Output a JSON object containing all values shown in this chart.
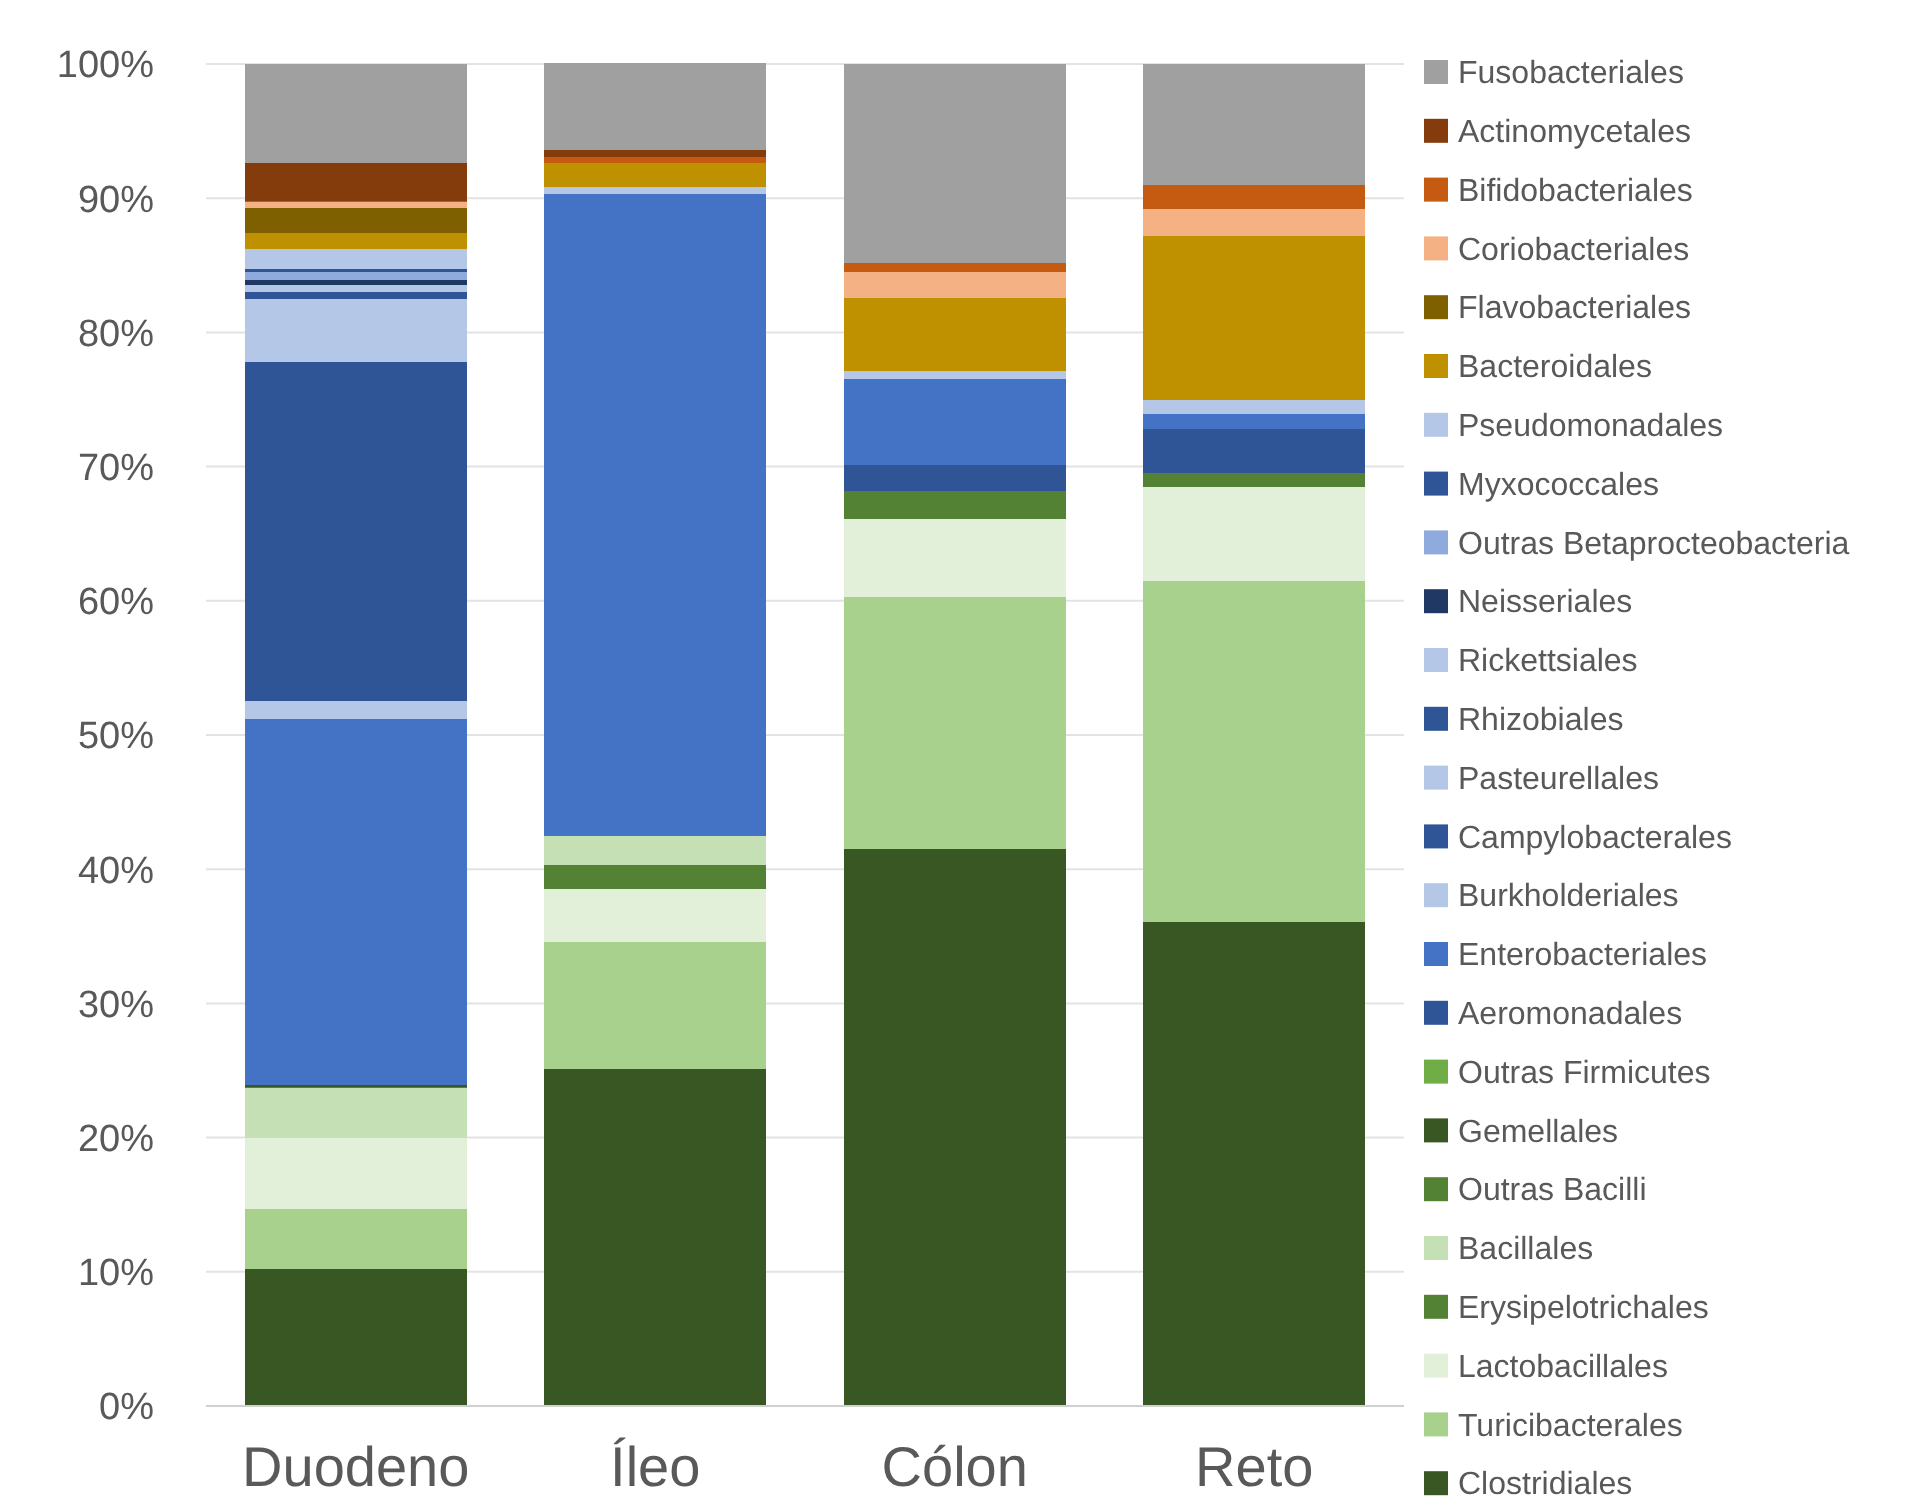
{
  "chart_data": {
    "type": "bar",
    "stacked": true,
    "categories": [
      "Duodeno",
      "Íleo",
      "Cólon",
      "Reto"
    ],
    "ylim": [
      0,
      100
    ],
    "yticks": [
      {
        "value": 0,
        "label": "0%"
      },
      {
        "value": 10,
        "label": "10%"
      },
      {
        "value": 20,
        "label": "20%"
      },
      {
        "value": 30,
        "label": "30%"
      },
      {
        "value": 40,
        "label": "40%"
      },
      {
        "value": 50,
        "label": "50%"
      },
      {
        "value": 60,
        "label": "60%"
      },
      {
        "value": 70,
        "label": "70%"
      },
      {
        "value": 80,
        "label": "80%"
      },
      {
        "value": 90,
        "label": "90%"
      },
      {
        "value": 100,
        "label": "100%"
      }
    ],
    "grid": "y",
    "legend": "right",
    "series": [
      {
        "name": "Clostridiales",
        "color": "#385723",
        "values": [
          10.2,
          25.1,
          41.5,
          36.1
        ]
      },
      {
        "name": "Turicibacterales",
        "color": "#a9d18e",
        "values": [
          4.5,
          9.5,
          18.8,
          25.4
        ]
      },
      {
        "name": "Lactobacillales",
        "color": "#e2f0d9",
        "values": [
          5.3,
          3.9,
          5.8,
          7.0
        ]
      },
      {
        "name": "Erysipelotrichales",
        "color": "#548235",
        "values": [
          null,
          1.8,
          2.1,
          1.0
        ]
      },
      {
        "name": "Bacillales",
        "color": "#c5e0b4",
        "values": [
          3.7,
          2.2,
          null,
          null
        ]
      },
      {
        "name": "Outras Bacilli",
        "color": "#548235",
        "values": [
          0.1,
          null,
          null,
          null
        ]
      },
      {
        "name": "Gemellales",
        "color": "#385723",
        "values": [
          0.1,
          null,
          null,
          null
        ]
      },
      {
        "name": "Outras Firmicutes",
        "color": "#70ad47",
        "values": [
          null,
          null,
          null,
          null
        ]
      },
      {
        "name": "Aeromonadales",
        "color": "#2f5597",
        "values": [
          null,
          null,
          1.9,
          3.3
        ]
      },
      {
        "name": "Enterobacteriales",
        "color": "#4472c4",
        "values": [
          27.3,
          47.8,
          6.4,
          1.1
        ]
      },
      {
        "name": "Burkholderiales",
        "color": "#b4c7e7",
        "values": [
          1.3,
          null,
          null,
          null
        ]
      },
      {
        "name": "Campylobacterales",
        "color": "#2f5597",
        "values": [
          25.3,
          null,
          null,
          null
        ]
      },
      {
        "name": "Pasteurellales",
        "color": "#b4c7e7",
        "values": [
          4.7,
          null,
          null,
          null
        ]
      },
      {
        "name": "Rhizobiales",
        "color": "#2f5597",
        "values": [
          0.5,
          null,
          null,
          null
        ]
      },
      {
        "name": "Rickettsiales",
        "color": "#b4c7e7",
        "values": [
          0.5,
          null,
          null,
          null
        ]
      },
      {
        "name": "Neisseriales",
        "color": "#203864",
        "values": [
          0.4,
          null,
          null,
          null
        ]
      },
      {
        "name": "Outras Betaprocteobacteria",
        "color": "#8faadc",
        "values": [
          0.6,
          null,
          null,
          null
        ]
      },
      {
        "name": "Myxococcales",
        "color": "#2f5597",
        "values": [
          0.2,
          null,
          null,
          null
        ]
      },
      {
        "name": "Pseudomonadales",
        "color": "#b4c7e7",
        "values": [
          1.5,
          0.5,
          0.6,
          1.1
        ]
      },
      {
        "name": "Bacteroidales",
        "color": "#bf9000",
        "values": [
          1.2,
          1.8,
          5.5,
          12.2
        ]
      },
      {
        "name": "Flavobacteriales",
        "color": "#7f6000",
        "values": [
          1.9,
          null,
          null,
          null
        ]
      },
      {
        "name": "Coriobacteriales",
        "color": "#f4b183",
        "values": [
          0.4,
          null,
          1.9,
          2.0
        ]
      },
      {
        "name": "Bifidobacteriales",
        "color": "#c55a11",
        "values": [
          0.1,
          0.5,
          0.7,
          1.8
        ]
      },
      {
        "name": "Actinomycetales",
        "color": "#843c0c",
        "values": [
          2.8,
          0.5,
          null,
          null
        ]
      },
      {
        "name": "Fusobacteriales",
        "color": "#a0a0a0",
        "values": [
          7.4,
          6.5,
          14.8,
          9.0
        ]
      }
    ]
  }
}
